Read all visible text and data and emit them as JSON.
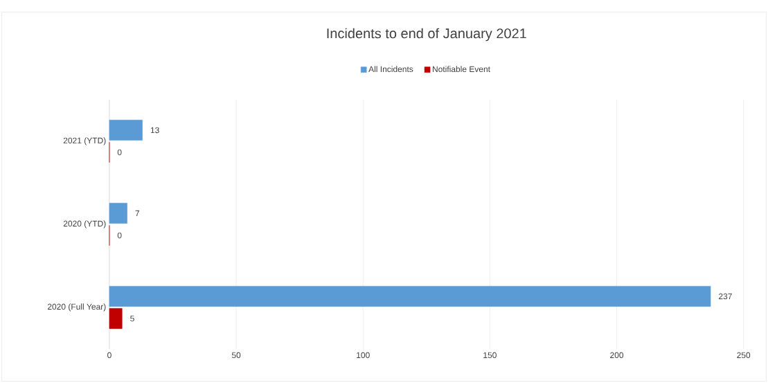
{
  "chart_data": {
    "type": "bar",
    "orientation": "horizontal",
    "title": "Incidents to end of January 2021",
    "categories": [
      "2021 (YTD)",
      "2020 (YTD)",
      "2020 (Full Year)"
    ],
    "series": [
      {
        "name": "All Incidents",
        "color": "#5b9bd5",
        "values": [
          13,
          7,
          237
        ]
      },
      {
        "name": "Notifiable Event",
        "color": "#c00000",
        "values": [
          0,
          0,
          5
        ]
      }
    ],
    "xlim": [
      0,
      250
    ],
    "xticks": [
      0,
      50,
      100,
      150,
      200,
      250
    ],
    "grid": "x",
    "legend": "top",
    "data_labels": true
  }
}
